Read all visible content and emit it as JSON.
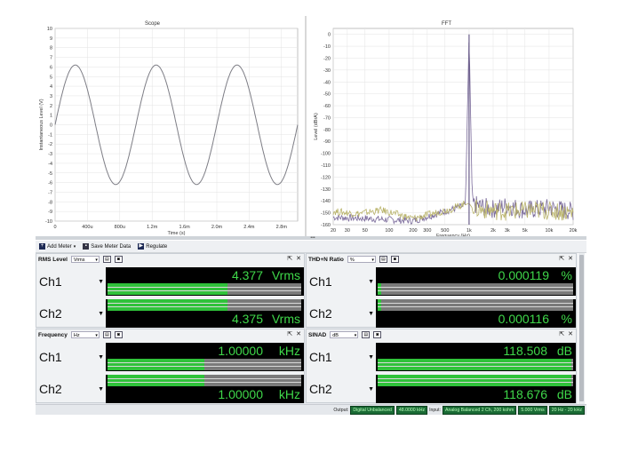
{
  "scope": {
    "title": "Scope",
    "xlabel": "Time (s)",
    "ylabel": "Instantaneous Level (V)",
    "yticks": [
      "10",
      "9",
      "8",
      "7",
      "6",
      "5",
      "4",
      "3",
      "2",
      "1",
      "0",
      "-1",
      "-2",
      "-3",
      "-4",
      "-5",
      "-6",
      "-7",
      "-8",
      "-9",
      "-10"
    ],
    "xticks": [
      "0",
      "400u",
      "800u",
      "1.2m",
      "1.6m",
      "2.0m",
      "2.4m",
      "2.8m"
    ]
  },
  "fft": {
    "title": "FFT",
    "xlabel": "Frequency (Hz)",
    "ylabel": "Level (dBrA)",
    "yticks": [
      "0",
      "-10",
      "-20",
      "-30",
      "-40",
      "-50",
      "-60",
      "-70",
      "-80",
      "-90",
      "-100",
      "-110",
      "-120",
      "-130",
      "-140",
      "-150",
      "-160"
    ],
    "xticks": [
      "20",
      "30",
      "50",
      "100",
      "200",
      "300",
      "500",
      "1k",
      "2k",
      "3k",
      "5k",
      "10k",
      "20k"
    ]
  },
  "chart_data": [
    {
      "type": "line",
      "title": "Scope",
      "xlabel": "Time (s)",
      "ylabel": "Instantaneous Level (V)",
      "xlim": [
        0,
        0.003
      ],
      "ylim": [
        -10,
        10
      ],
      "grid": true,
      "series": [
        {
          "frequency_hz": 1000,
          "amplitude_v": 6.2,
          "phase_start_v": 0,
          "x": [
            0,
            0.00025,
            0.0005,
            0.00075,
            0.001,
            0.00125,
            0.0015,
            0.00175,
            0.002,
            0.00225,
            0.0025,
            0.00275,
            0.003
          ],
          "y": [
            0,
            6.2,
            0,
            -6.2,
            0,
            6.2,
            0,
            -6.2,
            0,
            6.2,
            0,
            -6.2,
            0
          ]
        }
      ]
    },
    {
      "type": "line",
      "title": "FFT",
      "xlabel": "Frequency (Hz)",
      "ylabel": "Level (dBrA)",
      "xscale": "log",
      "xlim": [
        20,
        20000
      ],
      "ylim": [
        -160,
        5
      ],
      "grid": true,
      "series": [
        {
          "color": "#7a6a9a",
          "x": [
            20,
            50,
            200,
            500,
            900,
            1000,
            1100,
            2000,
            3000,
            5000,
            10000,
            20000
          ],
          "y": [
            -155,
            -156,
            -158,
            -150,
            -145,
            0,
            -146,
            -150,
            -147,
            -151,
            -149,
            -152
          ]
        },
        {
          "color": "#b9b36a",
          "x": [
            20,
            40,
            80,
            200,
            600,
            1000,
            1200,
            3000,
            8000,
            20000
          ],
          "y": [
            -150,
            -152,
            -149,
            -156,
            -148,
            -142,
            -150,
            -152,
            -151,
            -153
          ]
        }
      ]
    }
  ],
  "toolbar": {
    "add_meter": "Add Meter",
    "save_meter_data": "Save Meter Data",
    "regulate": "Regulate"
  },
  "meters": {
    "rms": {
      "title": "RMS Level",
      "unit_select": "Vrms",
      "ch1": {
        "label": "Ch1",
        "value": "4.377",
        "unit": "Vrms",
        "fill": 0.62
      },
      "ch2": {
        "label": "Ch2",
        "value": "4.375",
        "unit": "Vrms",
        "fill": 0.62
      }
    },
    "thdn": {
      "title": "THD+N Ratio",
      "unit_select": "%",
      "ch1": {
        "label": "Ch1",
        "value": "0.000119",
        "unit": "%",
        "fill": 0.02
      },
      "ch2": {
        "label": "Ch2",
        "value": "0.000116",
        "unit": "%",
        "fill": 0.02
      }
    },
    "freq": {
      "title": "Frequency",
      "unit_select": "Hz",
      "ch1": {
        "label": "Ch1",
        "value": "1.00000",
        "unit": "kHz",
        "fill": 0.5
      },
      "ch2": {
        "label": "Ch2",
        "value": "1.00000",
        "unit": "kHz",
        "fill": 0.5
      }
    },
    "sinad": {
      "title": "SINAD",
      "unit_select": "dB",
      "ch1": {
        "label": "Ch1",
        "value": "118.508",
        "unit": "dB",
        "fill": 0.99
      },
      "ch2": {
        "label": "Ch2",
        "value": "118.676",
        "unit": "dB",
        "fill": 0.99
      }
    }
  },
  "status": {
    "output_label": "Output:",
    "output_value": "Digital Unbalanced",
    "output_rate": "48.0000 kHz",
    "input_label": "Input:",
    "input_value": "Analog Balanced 2 Ch, 200 kohm",
    "input_range": "5.000 Vrms",
    "input_bw": "20 Hz - 20 kHz"
  },
  "colors": {
    "meter_text": "#3fd84a",
    "bar_fill": "#2fc23a",
    "bar_track": "#7a7a7a",
    "status_box": "#1a6b35"
  }
}
